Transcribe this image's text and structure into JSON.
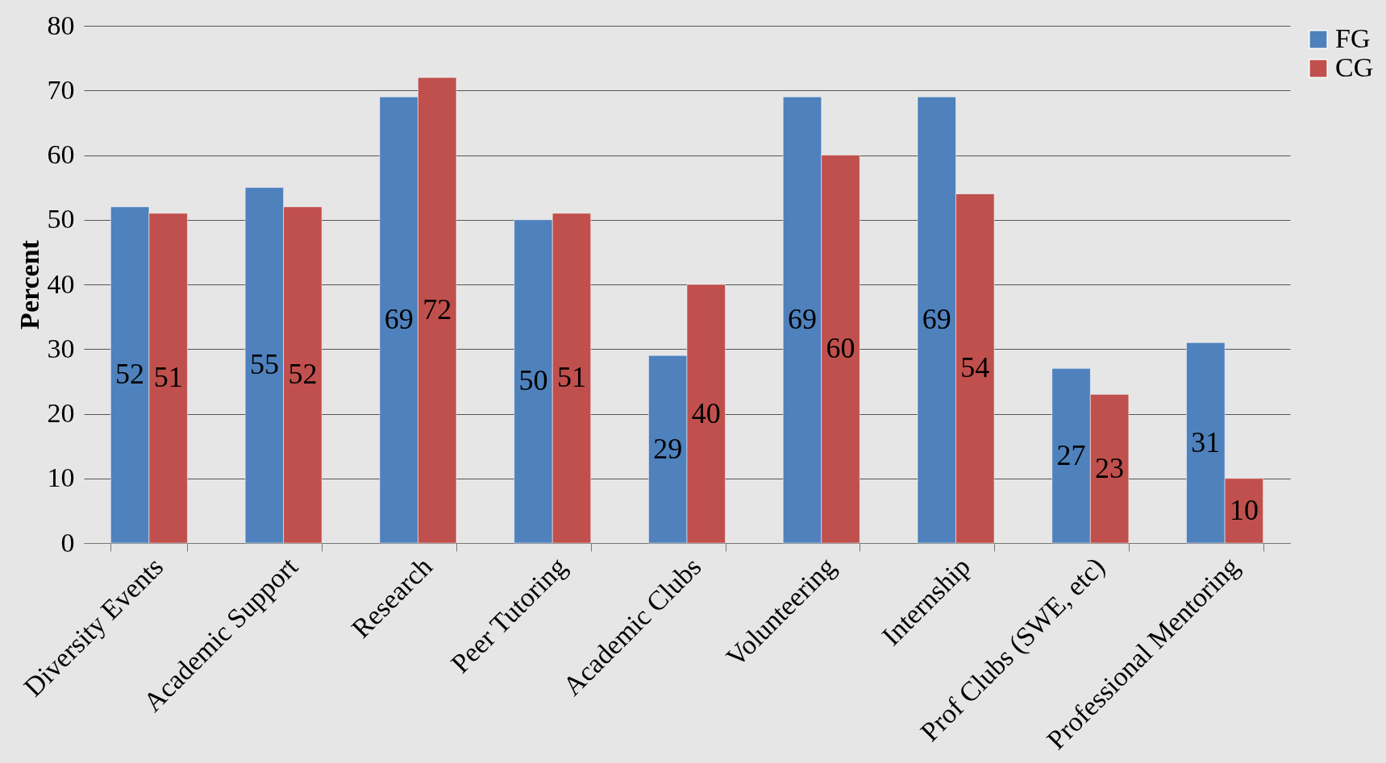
{
  "chart_data": {
    "type": "bar",
    "ylabel": "Percent",
    "categories": [
      "Diversity Events",
      "Academic Support",
      "Research",
      "Peer Tutoring",
      "Academic Clubs",
      "Volunteering",
      "Internship",
      "Prof Clubs (SWE, etc)",
      "Professional Mentoring"
    ],
    "series": [
      {
        "name": "FG",
        "color": "#4f81bd",
        "values": [
          52,
          55,
          69,
          50,
          29,
          69,
          69,
          27,
          31
        ]
      },
      {
        "name": "CG",
        "color": "#c0504d",
        "values": [
          51,
          52,
          72,
          51,
          40,
          60,
          54,
          23,
          10
        ]
      }
    ],
    "ylim": [
      0,
      80
    ],
    "yticks": [
      0,
      10,
      20,
      30,
      40,
      50,
      60,
      70,
      80
    ],
    "grid": "y",
    "legend": "right",
    "data_labels": true
  }
}
